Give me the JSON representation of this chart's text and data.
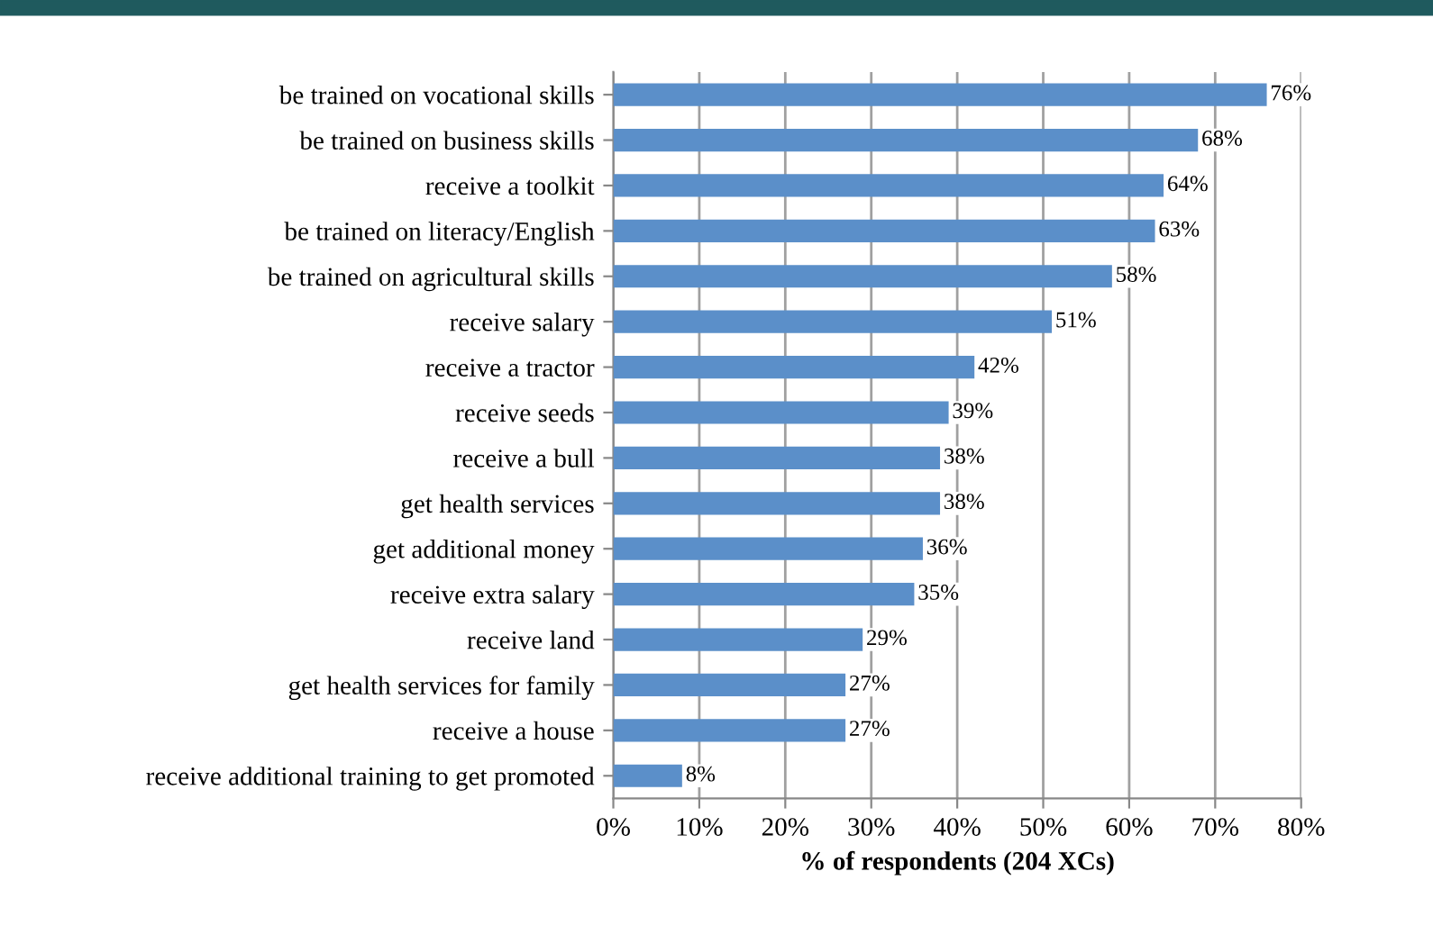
{
  "chart_data": {
    "type": "bar",
    "orientation": "horizontal",
    "xlabel": "% of respondents (204 XCs)",
    "categories": [
      "be trained on vocational skills",
      "be trained on business skills",
      "receive a toolkit",
      "be trained on literacy/English",
      "be trained on agricultural skills",
      "receive salary",
      "receive a tractor",
      "receive seeds",
      "receive a bull",
      "get health services",
      "get additional money",
      "receive extra salary",
      "receive land",
      "get health services for family",
      "receive a house",
      "receive additional training to get promoted"
    ],
    "values": [
      76,
      68,
      64,
      63,
      58,
      51,
      42,
      39,
      38,
      38,
      36,
      35,
      29,
      27,
      27,
      8
    ],
    "value_labels": [
      "76%",
      "68%",
      "64%",
      "63%",
      "58%",
      "51%",
      "42%",
      "39%",
      "38%",
      "38%",
      "36%",
      "35%",
      "29%",
      "27%",
      "27%",
      "8%"
    ],
    "color": "#5b8fc9",
    "xlim": [
      0,
      80
    ],
    "xticks": [
      {
        "value": 0,
        "label": "0%"
      },
      {
        "value": 10,
        "label": "10%"
      },
      {
        "value": 20,
        "label": "20%"
      },
      {
        "value": 30,
        "label": "30%"
      },
      {
        "value": 40,
        "label": "40%"
      },
      {
        "value": 50,
        "label": "50%"
      },
      {
        "value": 60,
        "label": "60%"
      },
      {
        "value": 70,
        "label": "70%"
      },
      {
        "value": 80,
        "label": "80%"
      }
    ],
    "grid": "x"
  }
}
